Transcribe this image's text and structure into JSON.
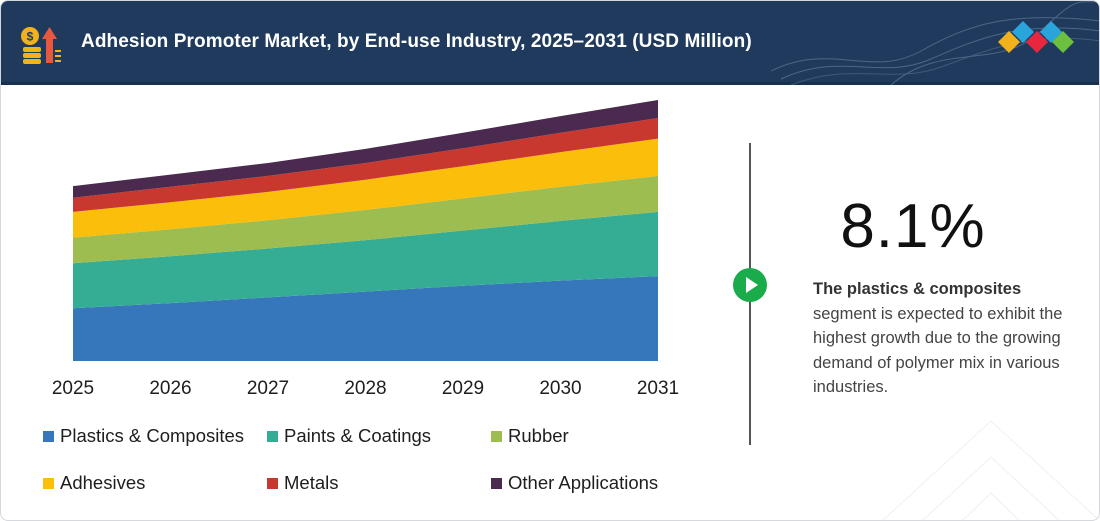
{
  "header": {
    "title": "Adhesion Promoter Market, by End-use Industry, 2025–2031 (USD Million)"
  },
  "chart_data": {
    "type": "area",
    "stacked": true,
    "categories": [
      "2025",
      "2026",
      "2027",
      "2028",
      "2029",
      "2030",
      "2031"
    ],
    "series": [
      {
        "name": "Plastics & Composites",
        "color": "#3677bb",
        "values": [
          41,
          45,
          49.5,
          54,
          58.5,
          62.5,
          66
        ]
      },
      {
        "name": "Paints & Coatings",
        "color": "#35ad95",
        "values": [
          35,
          36.5,
          38,
          40,
          43,
          46.5,
          50
        ]
      },
      {
        "name": "Rubber",
        "color": "#9ebd51",
        "values": [
          20,
          21,
          22,
          23.5,
          25,
          26.5,
          28
        ]
      },
      {
        "name": "Adhesives",
        "color": "#fbbf0b",
        "values": [
          20,
          21,
          22,
          23.5,
          25,
          27,
          29
        ]
      },
      {
        "name": "Metals",
        "color": "#c9382f",
        "values": [
          11,
          12,
          12.5,
          13,
          14,
          15,
          16
        ]
      },
      {
        "name": "Other Applications",
        "color": "#4a2a4e",
        "values": [
          9,
          9.5,
          10,
          11,
          12,
          13,
          14
        ]
      }
    ],
    "ylim": [
      0,
      210
    ],
    "grid": false,
    "legend_position": "bottom"
  },
  "insight": {
    "cagr": "8.1%",
    "highlight": "The plastics & composites",
    "text": "segment is expected to exhibit the highest growth due to the growing demand of polymer mix in various industries."
  },
  "colors": {
    "header_bg": "#1f3a5c",
    "accent_green": "#1aab4b"
  }
}
